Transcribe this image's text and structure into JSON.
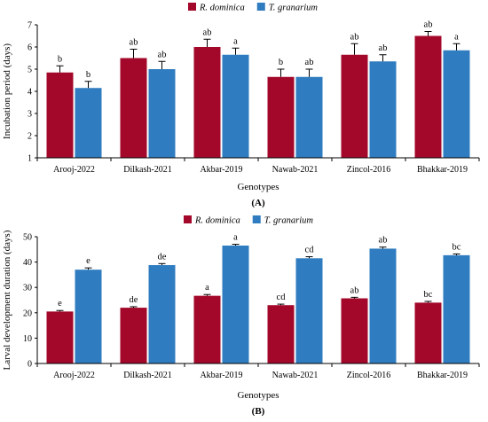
{
  "colors": {
    "r_dominica": "#a3082a",
    "t_granarium": "#2f7cc0"
  },
  "chart_data": [
    {
      "type": "bar",
      "panel_label": "(A)",
      "xlabel": "Genotypes",
      "ylabel": "Incubation period (days)",
      "ylim": [
        1,
        7
      ],
      "yticks": [
        1,
        2,
        3,
        4,
        5,
        6,
        7
      ],
      "legend_position": "top-center",
      "categories": [
        "Arooj-2022",
        "Dilkash-2021",
        "Akbar-2019",
        "Nawab-2021",
        "Zincol-2016",
        "Bhakkar-2019"
      ],
      "series": [
        {
          "name": "R. dominica",
          "color": "#a3082a",
          "values": [
            4.85,
            5.5,
            6.0,
            4.65,
            5.65,
            6.5
          ],
          "errors": [
            0.3,
            0.4,
            0.35,
            0.35,
            0.5,
            0.2
          ],
          "labels": [
            "b",
            "ab",
            "ab",
            "b",
            "ab",
            "ab"
          ]
        },
        {
          "name": "T. granarium",
          "color": "#2f7cc0",
          "values": [
            4.15,
            5.0,
            5.65,
            4.65,
            5.35,
            5.85
          ],
          "errors": [
            0.3,
            0.35,
            0.3,
            0.35,
            0.3,
            0.3
          ],
          "labels": [
            "b",
            "ab",
            "a",
            "ab",
            "ab",
            "a"
          ]
        }
      ]
    },
    {
      "type": "bar",
      "panel_label": "(B)",
      "xlabel": "Genotypes",
      "ylabel": "Larval development duration (days)",
      "ylim": [
        0,
        50
      ],
      "yticks": [
        0,
        10,
        20,
        30,
        40,
        50
      ],
      "legend_position": "top-left",
      "categories": [
        "Arooj-2022",
        "Dilkash-2021",
        "Akbar-2019",
        "Nawab-2021",
        "Zincol-2016",
        "Bhakkar-2019"
      ],
      "series": [
        {
          "name": "R. dominica",
          "color": "#a3082a",
          "values": [
            20.5,
            22.0,
            26.7,
            23.0,
            25.7,
            24.0
          ],
          "errors": [
            0.4,
            0.4,
            0.5,
            0.4,
            0.4,
            0.5
          ],
          "labels": [
            "e",
            "de",
            "a",
            "cd",
            "ab",
            "bc"
          ]
        },
        {
          "name": "T. granarium",
          "color": "#2f7cc0",
          "values": [
            37.0,
            38.8,
            46.5,
            41.5,
            45.3,
            42.7
          ],
          "errors": [
            0.7,
            0.6,
            0.5,
            0.6,
            0.6,
            0.5
          ],
          "labels": [
            "e",
            "de",
            "a",
            "cd",
            "ab",
            "bc"
          ]
        }
      ]
    }
  ]
}
